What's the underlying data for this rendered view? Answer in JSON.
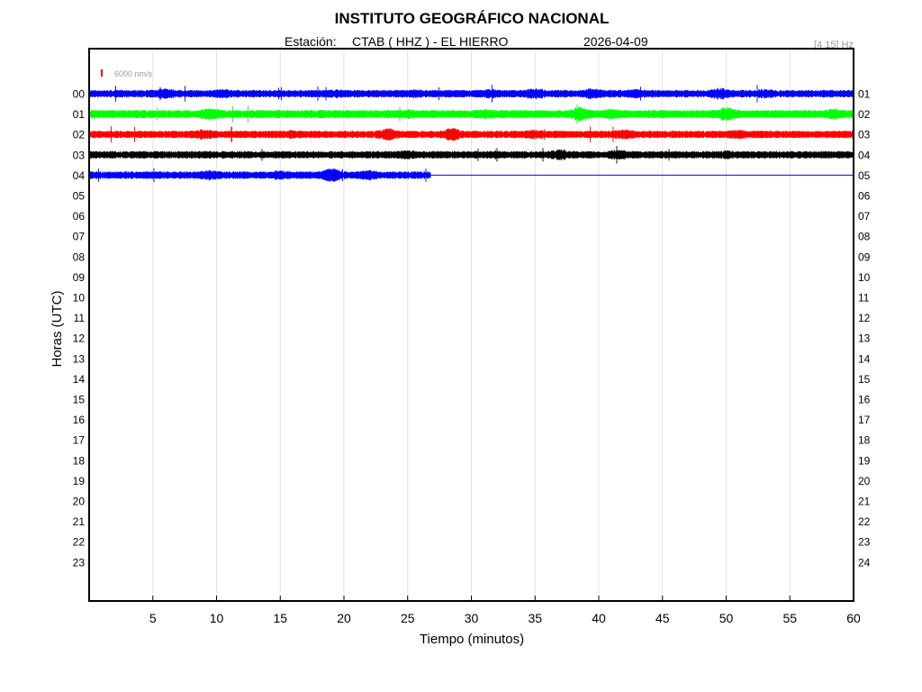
{
  "chart_data": {
    "type": "line",
    "title": "INSTITUTO GEOGRÁFICO NACIONAL",
    "station_label": "Estación:",
    "station": "CTAB ( HHZ ) - EL HIERRO",
    "date": "2026-04-09",
    "filter": "[4 15] Hz",
    "scale_label": "6000 nm/s",
    "scale_color": "#ff0000",
    "xlabel": "Tiempo (minutos)",
    "ylabel": "Horas (UTC)",
    "xlim": [
      0,
      60
    ],
    "x_ticks": [
      "5",
      "10",
      "15",
      "20",
      "25",
      "30",
      "35",
      "40",
      "45",
      "50",
      "55",
      "60"
    ],
    "x_tick_values": [
      5,
      10,
      15,
      20,
      25,
      30,
      35,
      40,
      45,
      50,
      55,
      60
    ],
    "grid": true,
    "left_hours": [
      "00",
      "01",
      "02",
      "03",
      "04",
      "05",
      "06",
      "07",
      "08",
      "09",
      "10",
      "11",
      "12",
      "13",
      "14",
      "15",
      "16",
      "17",
      "18",
      "19",
      "20",
      "21",
      "22",
      "23"
    ],
    "right_hours": [
      "01",
      "02",
      "03",
      "04",
      "05",
      "06",
      "07",
      "08",
      "09",
      "10",
      "11",
      "12",
      "13",
      "14",
      "15",
      "16",
      "17",
      "18",
      "19",
      "20",
      "21",
      "22",
      "23",
      "24"
    ],
    "series": [
      {
        "hour": "00",
        "color": "#0000ff",
        "start_min": 0,
        "end_min": 60,
        "amplitude": 1.0,
        "bursts": [
          [
            6,
            1.5
          ],
          [
            10.5,
            1.3
          ],
          [
            19.5,
            1.2
          ],
          [
            25.5,
            1.2
          ],
          [
            31.5,
            1.3
          ],
          [
            35,
            1.6
          ],
          [
            39.5,
            1.5
          ],
          [
            43,
            1.3
          ],
          [
            49.5,
            1.6
          ],
          [
            53,
            1.3
          ]
        ]
      },
      {
        "hour": "01",
        "color": "#00ff00",
        "start_min": 0,
        "end_min": 60,
        "amplitude": 1.1,
        "bursts": [
          [
            9.5,
            1.4
          ],
          [
            25,
            1.2
          ],
          [
            31,
            1.2
          ],
          [
            38.5,
            1.8
          ],
          [
            41,
            1.3
          ],
          [
            50,
            1.8
          ],
          [
            58.5,
            1.3
          ]
        ]
      },
      {
        "hour": "02",
        "color": "#ff0000",
        "start_min": 0,
        "end_min": 60,
        "amplitude": 1.0,
        "bursts": [
          [
            9,
            1.4
          ],
          [
            16,
            1.2
          ],
          [
            23.5,
            1.7
          ],
          [
            28.5,
            1.8
          ],
          [
            35,
            1.3
          ],
          [
            42,
            1.4
          ],
          [
            51,
            1.3
          ]
        ]
      },
      {
        "hour": "03",
        "color": "#000000",
        "start_min": 0,
        "end_min": 60,
        "amplitude": 1.0,
        "bursts": [
          [
            25,
            1.2
          ],
          [
            37,
            1.5
          ],
          [
            41.5,
            1.4
          ],
          [
            50,
            1.2
          ]
        ]
      },
      {
        "hour": "04",
        "color": "#0000ff",
        "start_min": 0,
        "end_min": 26.8,
        "amplitude": 1.0,
        "bursts": [
          [
            9.5,
            1.4
          ],
          [
            15,
            1.3
          ],
          [
            19,
            1.9
          ],
          [
            22,
            1.4
          ]
        ],
        "flat_to": 60
      }
    ]
  }
}
